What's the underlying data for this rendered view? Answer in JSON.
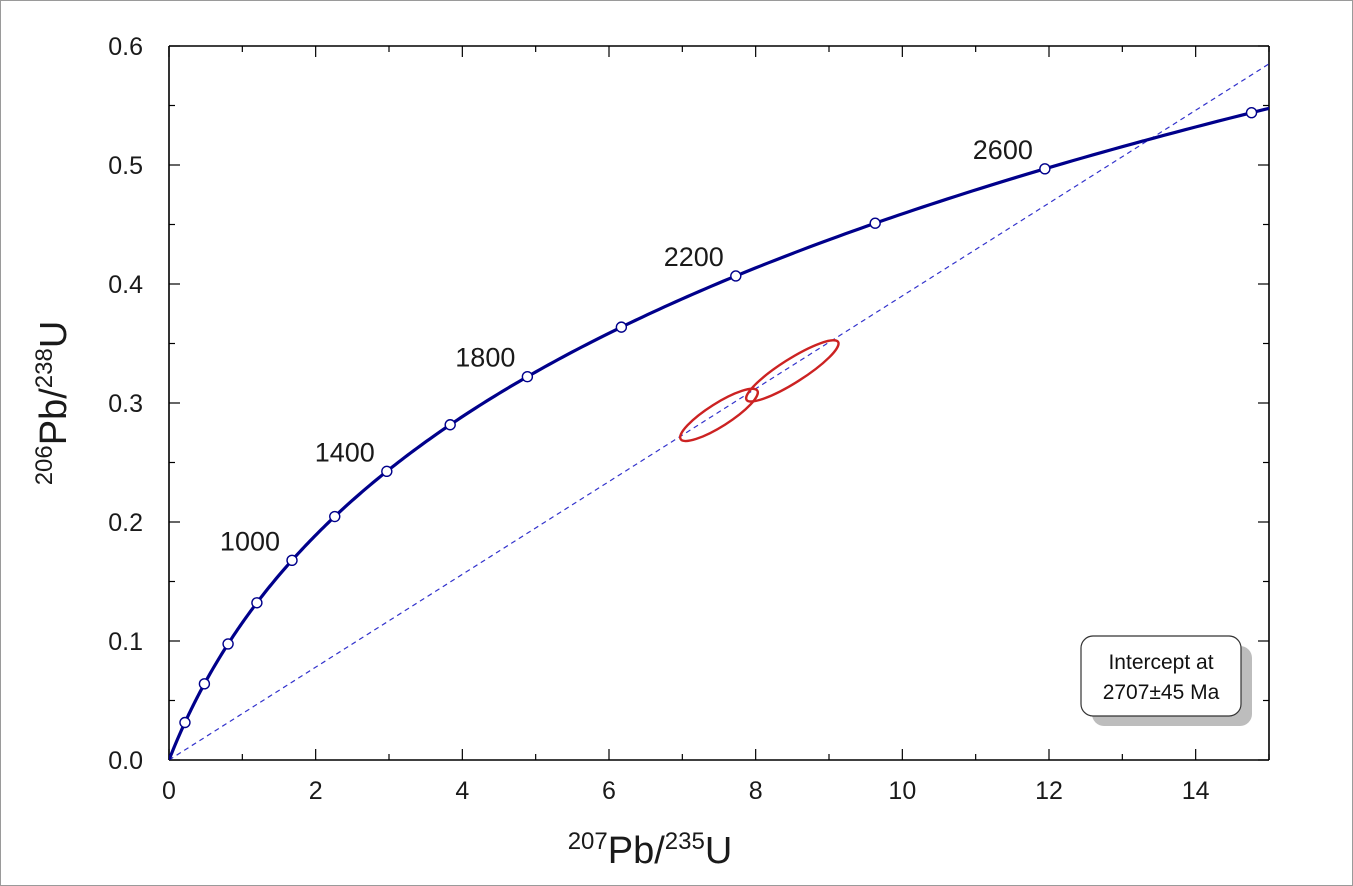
{
  "chart_data": {
    "type": "scatter",
    "title": "",
    "xlabel": {
      "sup1": "207",
      "main1": "Pb/",
      "sup2": "235",
      "main2": "U"
    },
    "ylabel": {
      "sup1": "206",
      "main1": "Pb/",
      "sup2": "238",
      "main2": "U"
    },
    "xlim": [
      0,
      15
    ],
    "ylim": [
      0,
      0.6
    ],
    "x_ticks": [
      {
        "value": 0,
        "label": "0"
      },
      {
        "value": 2,
        "label": "2"
      },
      {
        "value": 4,
        "label": "4"
      },
      {
        "value": 6,
        "label": "6"
      },
      {
        "value": 8,
        "label": "8"
      },
      {
        "value": 10,
        "label": "10"
      },
      {
        "value": 12,
        "label": "12"
      },
      {
        "value": 14,
        "label": "14"
      }
    ],
    "y_ticks": [
      {
        "value": 0,
        "label": "0.0"
      },
      {
        "value": 0.1,
        "label": "0.1"
      },
      {
        "value": 0.2,
        "label": "0.2"
      },
      {
        "value": 0.3,
        "label": "0.3"
      },
      {
        "value": 0.4,
        "label": "0.4"
      },
      {
        "value": 0.5,
        "label": "0.5"
      },
      {
        "value": 0.6,
        "label": "0.6"
      }
    ],
    "grid": false,
    "concordia": {
      "color": "#00008b",
      "age_marker_interval_ma": 200,
      "age_range_ma": [
        0,
        2900
      ],
      "labeled_ages": [
        {
          "age": 1000,
          "label": "1000"
        },
        {
          "age": 1400,
          "label": "1400"
        },
        {
          "age": 1800,
          "label": "1800"
        },
        {
          "age": 2200,
          "label": "2200"
        },
        {
          "age": 2600,
          "label": "2600"
        }
      ]
    },
    "discordia": {
      "color": "#3333cc",
      "style": "dashed",
      "x": [
        0,
        15
      ],
      "y": [
        0,
        0.585
      ]
    },
    "error_ellipses": [
      {
        "cx": 7.5,
        "cy": 0.29,
        "rx": 0.67,
        "ry": 0.0175,
        "color": "#cc2222"
      },
      {
        "cx": 8.5,
        "cy": 0.327,
        "rx": 0.8,
        "ry": 0.018,
        "color": "#cc2222"
      }
    ],
    "annotation": {
      "line1": "Intercept at",
      "line2": "2707±45 Ma",
      "position": "bottom-right"
    }
  }
}
